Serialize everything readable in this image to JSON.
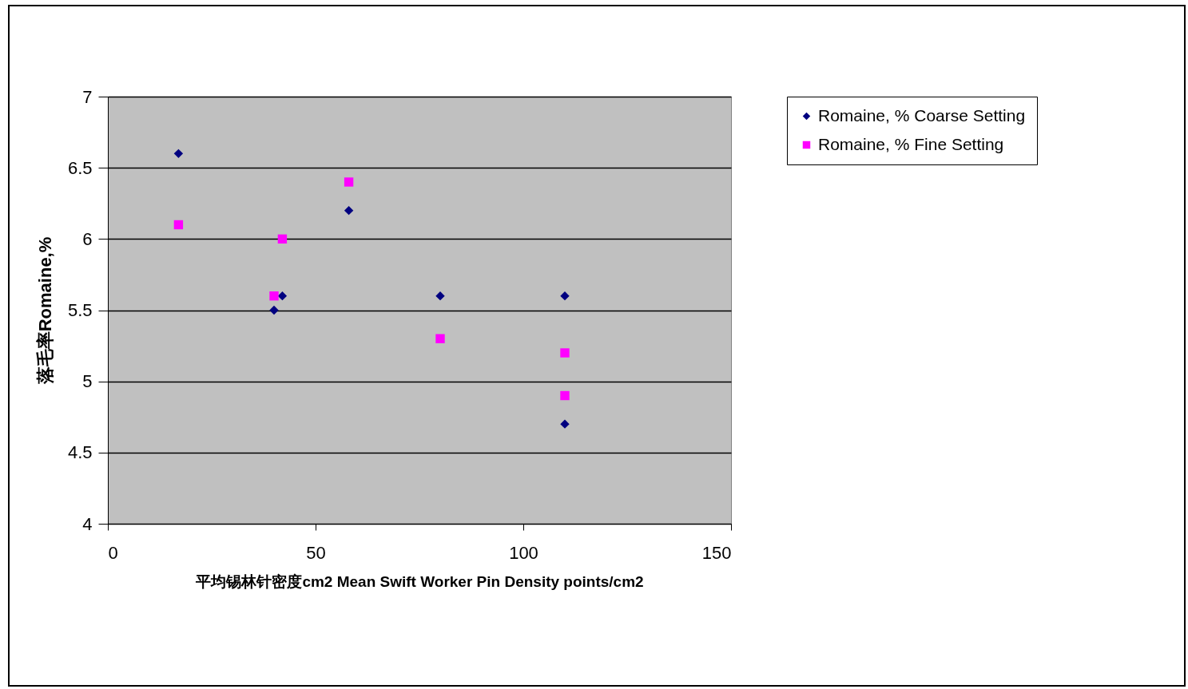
{
  "chart_data": {
    "type": "scatter",
    "xlabel": "平均锡林针密度cm2 Mean Swift Worker Pin Density points/cm2",
    "ylabel": "落毛率Romaine,%",
    "xlim": [
      0,
      150
    ],
    "xticks": [
      0,
      50,
      100,
      150
    ],
    "ylim": [
      4,
      7
    ],
    "yticks": [
      4,
      4.5,
      5,
      5.5,
      6,
      6.5,
      7
    ],
    "grid": "y",
    "legend": "right",
    "series": [
      {
        "name": "Romaine, % Coarse Setting",
        "color": "#000080",
        "marker": "diamond",
        "x": [
          17,
          40,
          42,
          58,
          80,
          110,
          110
        ],
        "values": [
          6.6,
          5.5,
          5.6,
          6.2,
          5.6,
          5.6,
          4.7
        ]
      },
      {
        "name": "Romaine, % Fine Setting",
        "color": "#ff00ff",
        "marker": "square",
        "x": [
          17,
          40,
          42,
          58,
          80,
          110,
          110
        ],
        "values": [
          6.1,
          5.6,
          6.0,
          6.4,
          5.3,
          5.2,
          4.9
        ]
      }
    ]
  }
}
